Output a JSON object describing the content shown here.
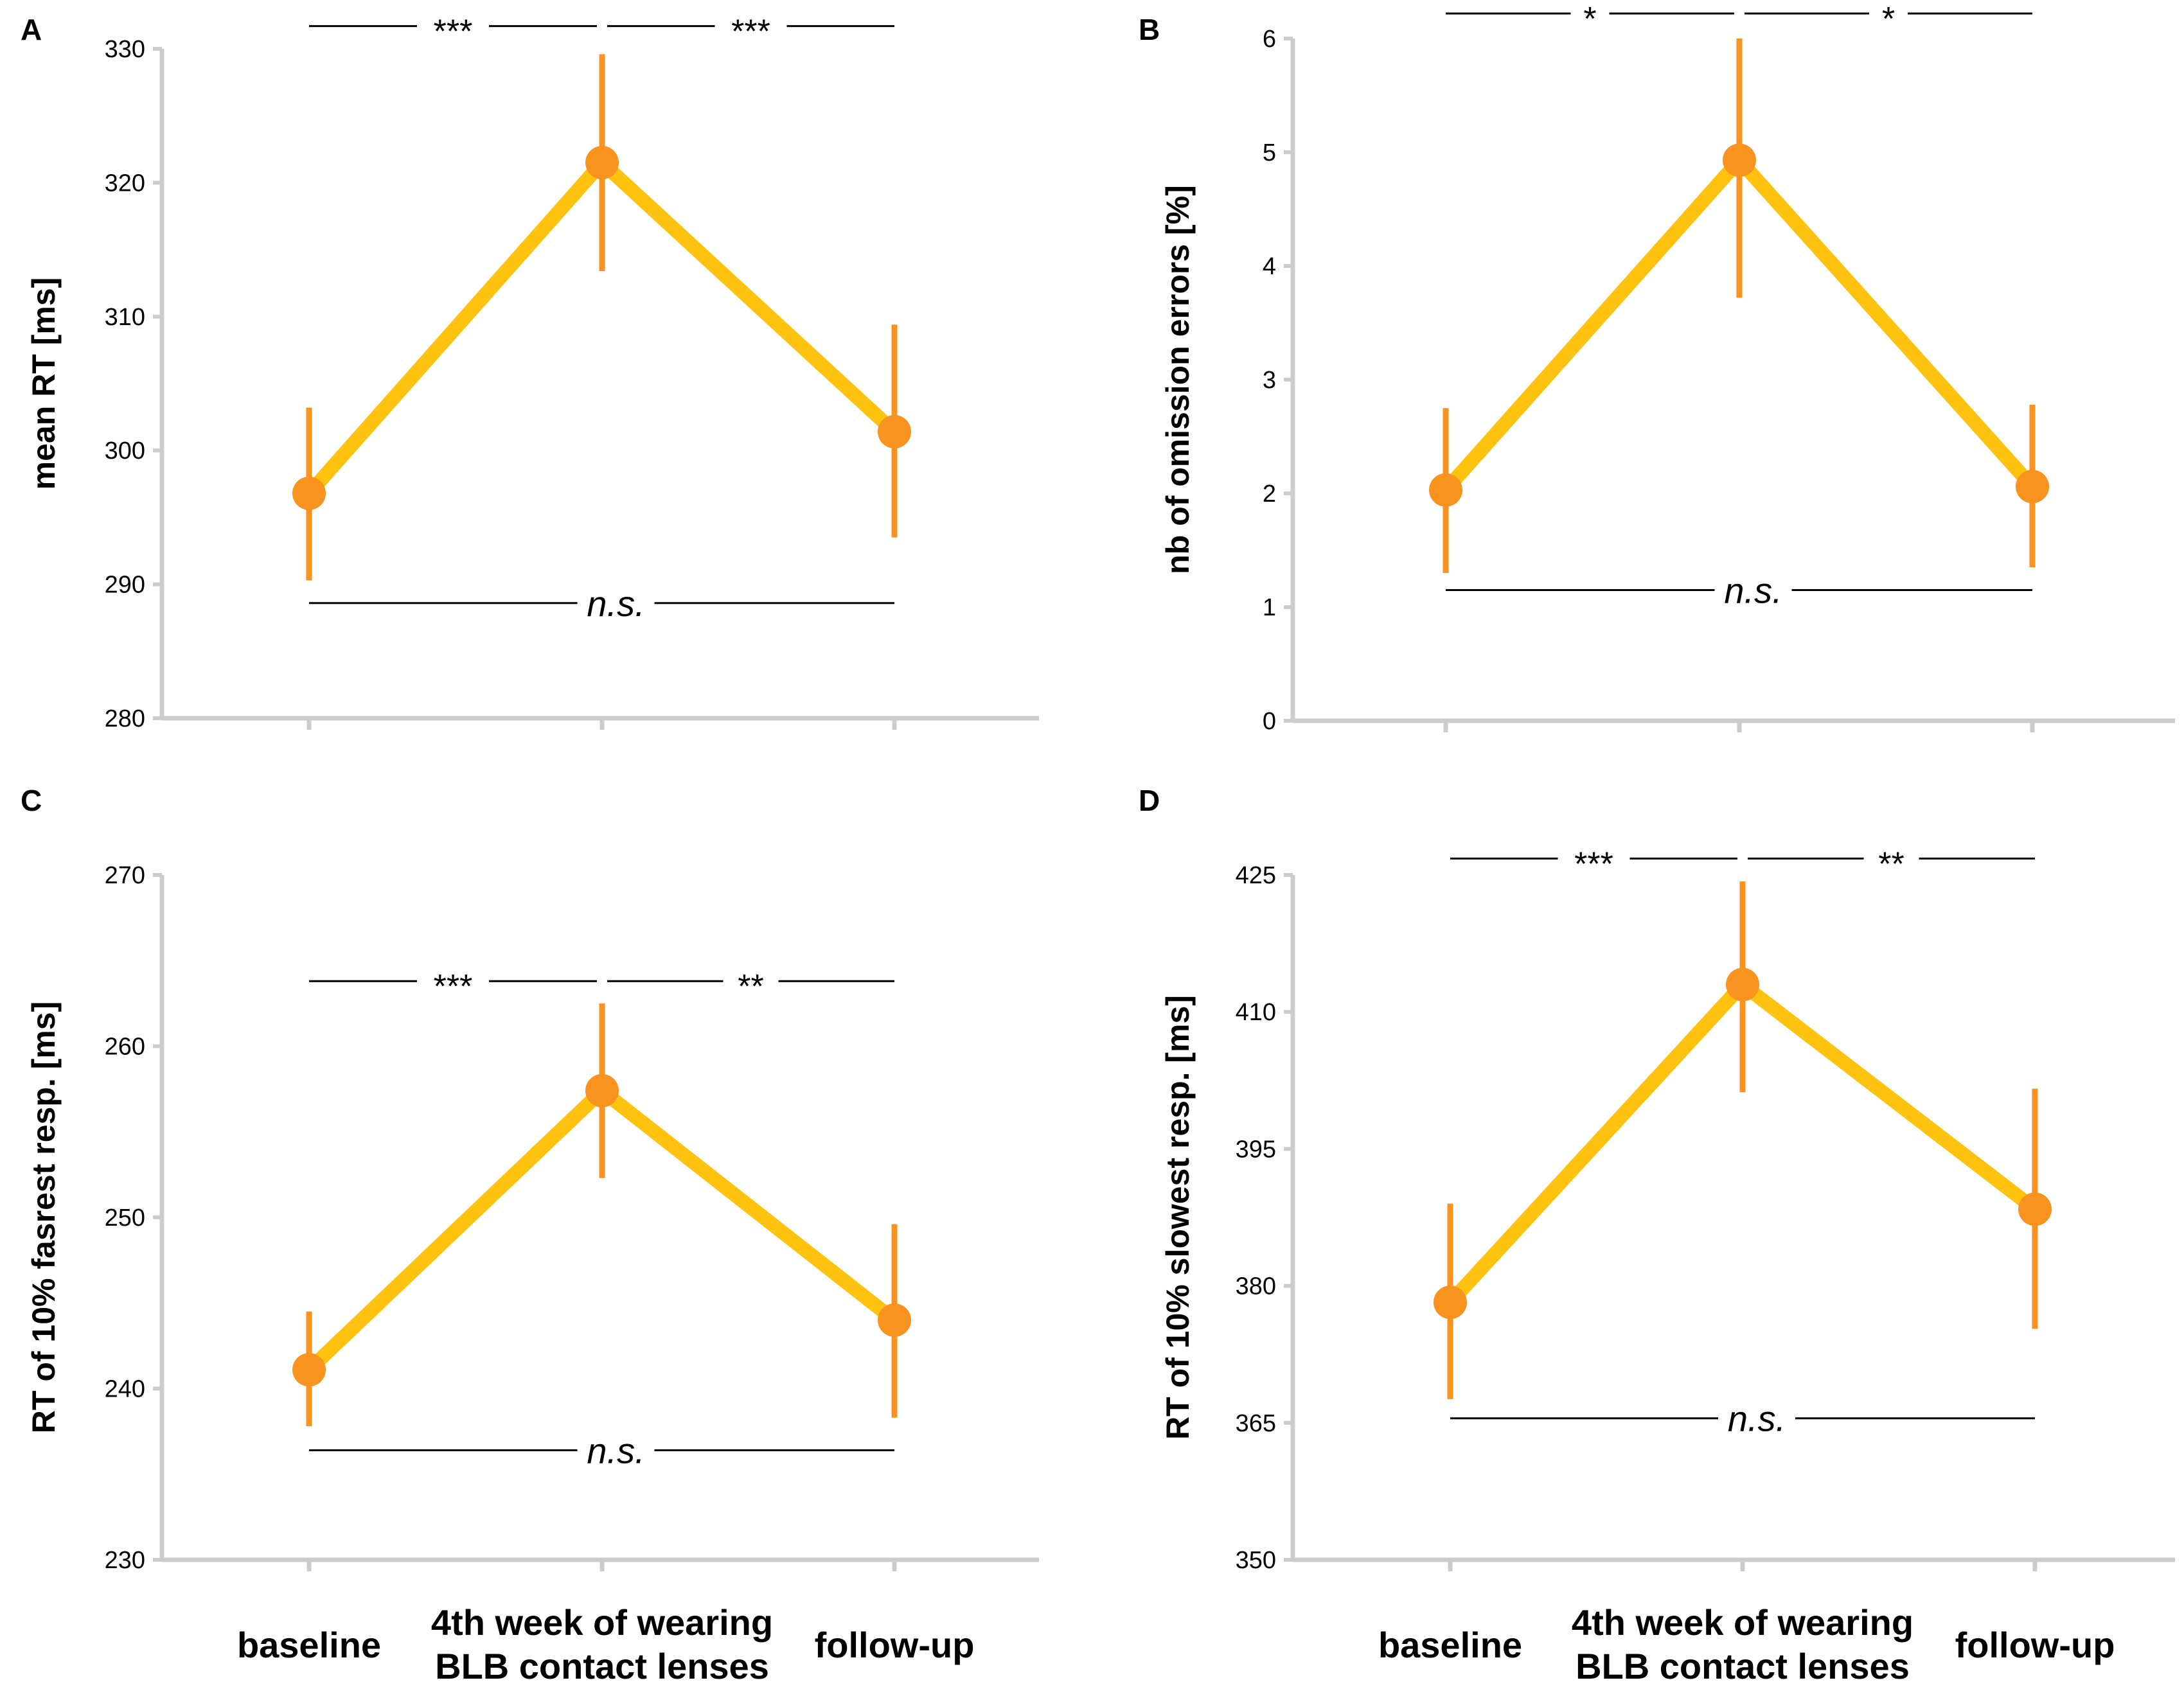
{
  "colors": {
    "line": "#FFC20E",
    "marker": "#F7931E",
    "errorbar": "#F7931E",
    "axis": "#CCCCCC",
    "text": "#000000"
  },
  "x_categories": [
    [
      "baseline"
    ],
    [
      "4th week of wearing",
      "BLB contact lenses"
    ],
    [
      "follow-up"
    ]
  ],
  "chart_data": [
    {
      "panel": "A",
      "type": "line",
      "ylabel": "mean RT [ms]",
      "ylim": [
        280,
        330
      ],
      "yticks": [
        280,
        290,
        300,
        310,
        320,
        330
      ],
      "values": [
        296.8,
        321.5,
        301.4
      ],
      "err_low": [
        290.3,
        313.4,
        293.5
      ],
      "err_high": [
        303.2,
        329.6,
        309.4
      ],
      "sig_top": [
        {
          "from": 0,
          "to": 1,
          "label": "***"
        },
        {
          "from": 1,
          "to": 2,
          "label": "***"
        }
      ],
      "sig_top_y": 331.7,
      "ns_label": "n.s.",
      "ns_y": 288.6
    },
    {
      "panel": "B",
      "type": "line",
      "ylabel": "nb of omission errors [%]",
      "ylim": [
        0,
        6
      ],
      "yticks": [
        0,
        1,
        2,
        3,
        4,
        5,
        6
      ],
      "values": [
        2.03,
        4.93,
        2.06
      ],
      "err_low": [
        1.3,
        3.72,
        1.35
      ],
      "err_high": [
        2.75,
        6.0,
        2.78
      ],
      "sig_top": [
        {
          "from": 0,
          "to": 1,
          "label": "*"
        },
        {
          "from": 1,
          "to": 2,
          "label": "*"
        }
      ],
      "sig_top_y": 6.22,
      "ns_label": "n.s.",
      "ns_y": 1.15
    },
    {
      "panel": "C",
      "type": "line",
      "ylabel": "RT of 10% fasrest resp. [ms]",
      "ylim": [
        230,
        270
      ],
      "yticks": [
        230,
        240,
        250,
        260,
        270
      ],
      "values": [
        241.1,
        257.4,
        244.0
      ],
      "err_low": [
        237.8,
        252.3,
        238.3
      ],
      "err_high": [
        244.5,
        262.5,
        249.6
      ],
      "sig_top": [
        {
          "from": 0,
          "to": 1,
          "label": "***"
        },
        {
          "from": 1,
          "to": 2,
          "label": "**"
        }
      ],
      "sig_top_y": 263.8,
      "ns_label": "n.s.",
      "ns_y": 236.4
    },
    {
      "panel": "D",
      "type": "line",
      "ylabel": "RT of 10% slowest resp. [ms]",
      "ylim": [
        350,
        425
      ],
      "yticks": [
        350,
        365,
        380,
        395,
        410,
        425
      ],
      "values": [
        378.2,
        413.0,
        388.4
      ],
      "err_low": [
        367.6,
        401.2,
        375.3
      ],
      "err_high": [
        389.0,
        424.3,
        401.6
      ],
      "sig_top": [
        {
          "from": 0,
          "to": 1,
          "label": "***"
        },
        {
          "from": 1,
          "to": 2,
          "label": "**"
        }
      ],
      "sig_top_y": 426.8,
      "ns_label": "n.s.",
      "ns_y": 365.5
    }
  ]
}
